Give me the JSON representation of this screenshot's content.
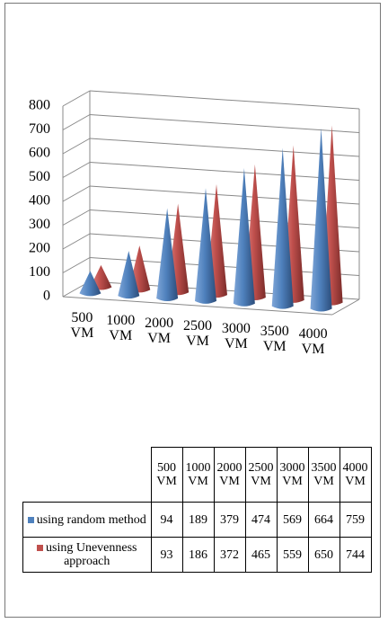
{
  "chart_data": {
    "type": "cone3d",
    "categories": [
      "500 VM",
      "1000 VM",
      "2000 VM",
      "2500 VM",
      "3000 VM",
      "3500 VM",
      "4000 VM"
    ],
    "series": [
      {
        "name": "using random method",
        "color": "#4f81bd",
        "values": [
          94,
          189,
          379,
          474,
          569,
          664,
          759
        ]
      },
      {
        "name": "using Unevenness approach",
        "color": "#c0504d",
        "values": [
          93,
          186,
          372,
          465,
          559,
          650,
          744
        ]
      }
    ],
    "ylim": [
      0,
      800
    ],
    "yticks": [
      0,
      100,
      200,
      300,
      400,
      500,
      600,
      700,
      800
    ],
    "grid": true,
    "data_table": true
  }
}
